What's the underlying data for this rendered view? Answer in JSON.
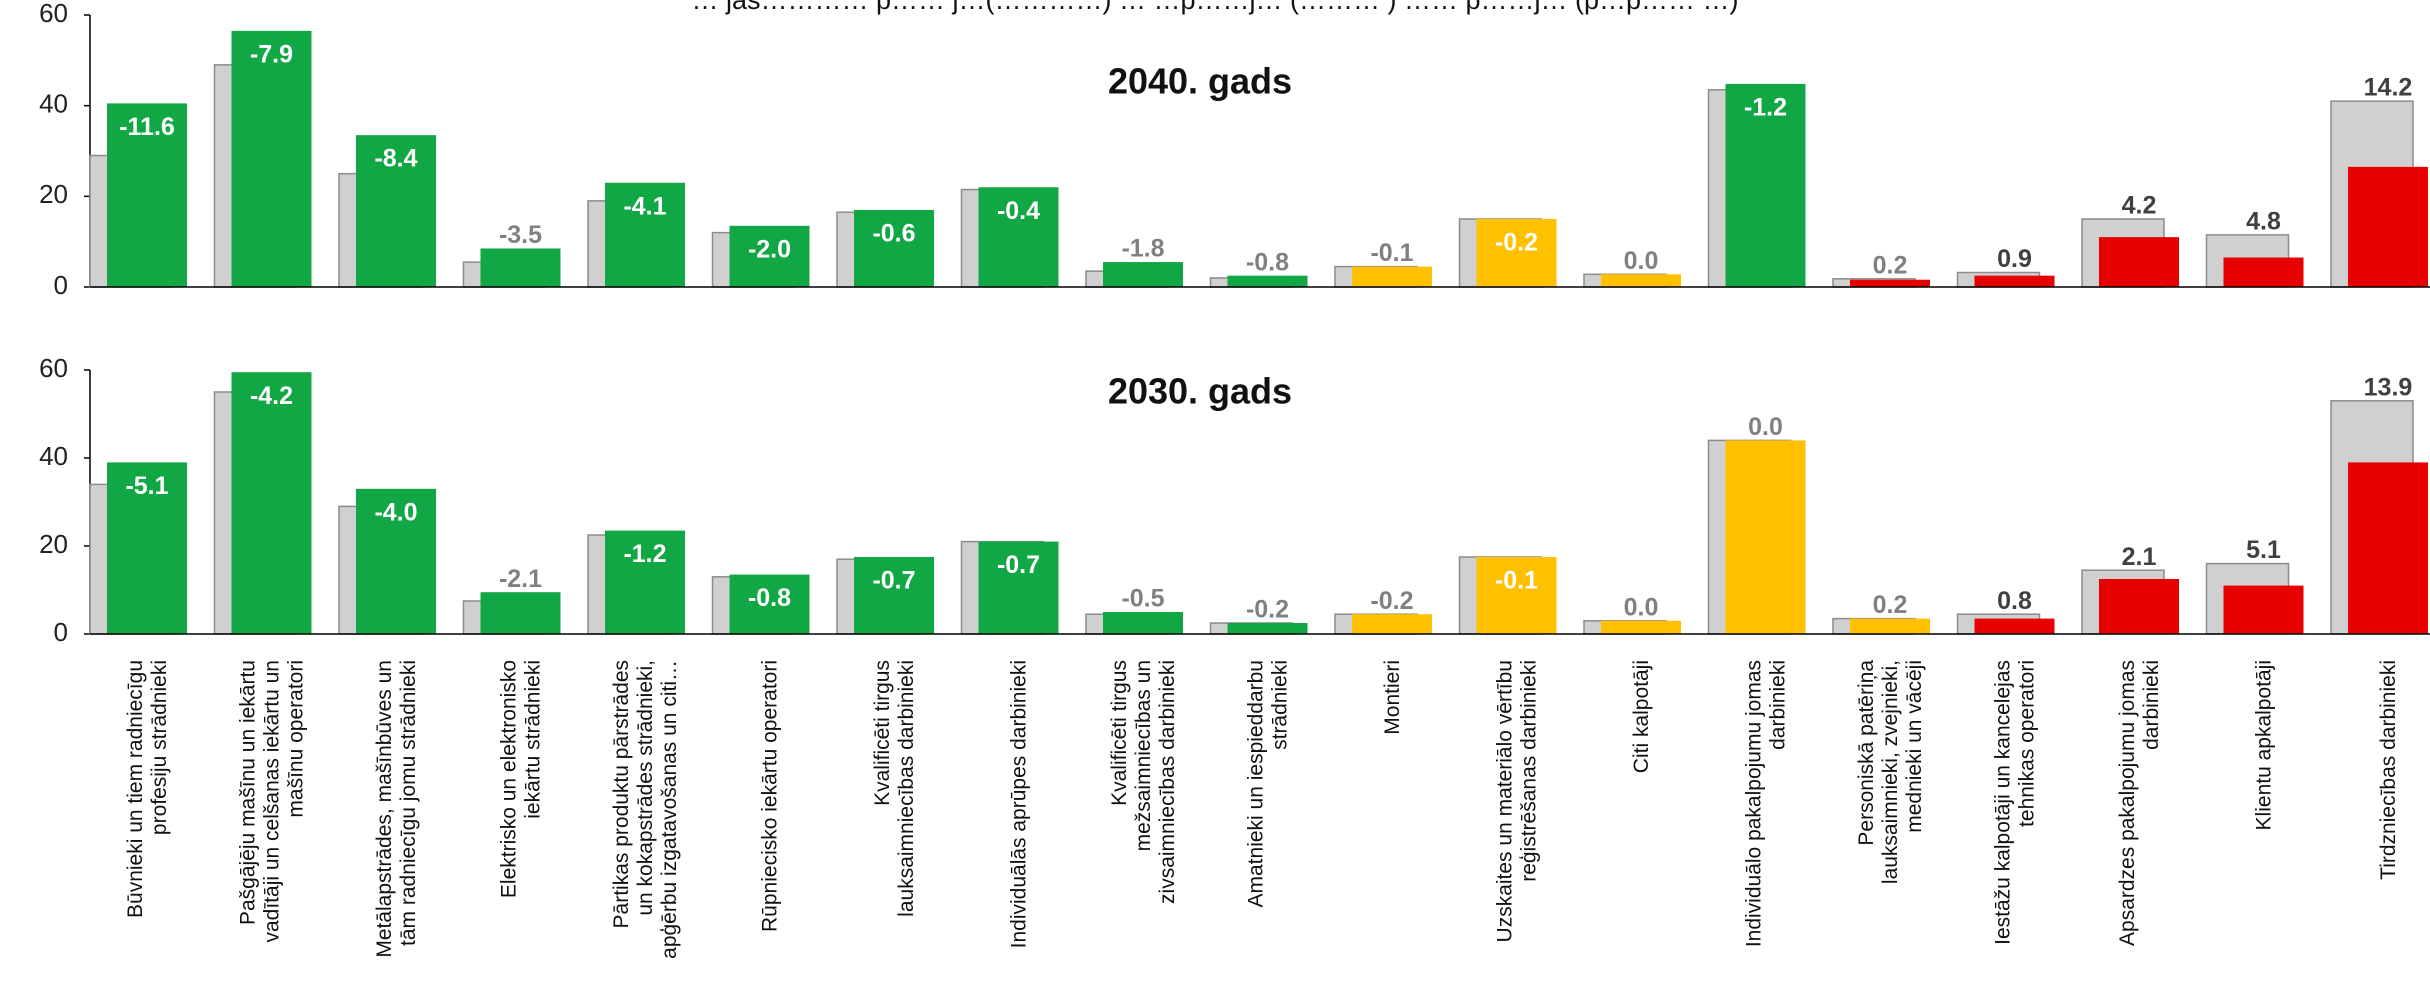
{
  "chart_data": {
    "type": "bar",
    "title": "… jas………… p…… j…(…………) … …p……j… (……… ) …… p……j… (p…p…… …)",
    "categories": [
      "Būvnieki un tiem radniecīgu profesiju strādnieki",
      "Pašgājēju mašīnu un iekārtu vadītāji un celšanas iekārtu un mašīnu operatori",
      "Metālapstrādes, mašīnbūves un tām radniecīgu jomu strādnieki",
      "Elektrisko un elektronisko iekārtu strādnieki",
      "Pārtikas produktu pārstrādes un kokapstrādes strādnieki, apģērbu izgatavošanas un citi…",
      "Rūpniecisko iekārtu operatori",
      "Kvalificēti tirgus lauksaimniecības darbinieki",
      "Individuālās aprūpes darbinieki",
      "Kvalificēti tirgus mežsaimniecības un zivsaimniecības darbinieki",
      "Amatnieki un iespieddarbu strādnieki",
      "Montieri",
      "Uzskaites un materiālo vērtību reģistrēšanas darbinieki",
      "Citi kalpotāji",
      "Individuālo pakalpojumu jomas darbinieki",
      "Personiskā patēriņa lauksaimnieki, zvejnieki, mednieki un vācēji",
      "Iestāžu kalpotāji un kancelejas tehnikas operatori",
      "Apsardzes pakalpojumu jomas darbinieki",
      "Klientu apkalpotāji",
      "Tirdzniecības darbinieki"
    ],
    "category_label_lines": [
      [
        "Būvnieki un tiem radniecīgu",
        "profesiju strādnieki"
      ],
      [
        "Pašgājēju mašīnu un iekārtu",
        "vadītāji un celšanas iekārtu un",
        "mašīnu operatori"
      ],
      [
        "Metālapstrādes, mašīnbūves un",
        "tām radniecīgu jomu strādnieki"
      ],
      [
        "Elektrisko un elektronisko",
        "iekārtu strādnieki"
      ],
      [
        "Pārtikas produktu pārstrādes",
        "un kokapstrādes strādnieki,",
        "apģērbu izgatavošanas un citi…"
      ],
      [
        "Rūpniecisko iekārtu operatori"
      ],
      [
        "Kvalificēti tirgus",
        "lauksaimniecības darbinieki"
      ],
      [
        "Individuālās aprūpes darbinieki"
      ],
      [
        "Kvalificēti tirgus",
        "mežsaimniecības un",
        "zivsaimniecības darbinieki"
      ],
      [
        "Amatnieki un iespieddarbu",
        "strādnieki"
      ],
      [
        "Montieri"
      ],
      [
        "Uzskaites un materiālo vērtību",
        "reģistrēšanas darbinieki"
      ],
      [
        "Citi kalpotāji"
      ],
      [
        "Individuālo pakalpojumu jomas",
        "darbinieki"
      ],
      [
        "Personiskā patēriņa",
        "lauksaimnieki, zvejnieki,",
        "mednieki un vācēji"
      ],
      [
        "Iestāžu kalpotāji un kancelejas",
        "tehnikas operatori"
      ],
      [
        "Apsardzes pakalpojumu jomas",
        "darbinieki"
      ],
      [
        "Klientu apkalpotāji"
      ],
      [
        "Tirdzniecības darbinieki"
      ]
    ],
    "ylim": [
      0,
      60
    ],
    "yticks": [
      0,
      20,
      40,
      60
    ],
    "colors": {
      "green": "#12A745",
      "yellow": "#FFC000",
      "red": "#E60000",
      "grey": "#D0D0D0",
      "grey_edge": "#8C8C8C",
      "label_white": "#FFFFFF",
      "label_grey": "#808080",
      "label_dark": "#404040"
    },
    "panels": [
      {
        "title": "2040. gads",
        "series": [
          {
            "values": [
              29,
              49,
              25,
              5.5,
              19,
              12,
              16.5,
              21.5,
              3.5,
              2,
              4.5,
              15,
              2.8,
              43.5,
              1.8,
              3.2,
              15,
              11.5,
              41
            ]
          },
          {
            "values": [
              40.5,
              56.5,
              33.5,
              8.5,
              23,
              13.5,
              17,
              22,
              5.5,
              2.5,
              4.5,
              15,
              2.8,
              44.8,
              1.6,
              2.5,
              11,
              6.5,
              26.5
            ]
          }
        ],
        "labels": [
          "-11.6",
          "-7.9",
          "-8.4",
          "-3.5",
          "-4.1",
          "-2.0",
          "-0.6",
          "-0.4",
          "-1.8",
          "-0.8",
          "-0.1",
          "-0.2",
          "0.0",
          "-1.2",
          "0.2",
          "0.9",
          "4.2",
          "4.8",
          "14.2"
        ],
        "color_keys": [
          "green",
          "green",
          "green",
          "green",
          "green",
          "green",
          "green",
          "green",
          "green",
          "green",
          "yellow",
          "yellow",
          "yellow",
          "green",
          "red",
          "red",
          "red",
          "red",
          "red"
        ]
      },
      {
        "title": "2030. gads",
        "series": [
          {
            "values": [
              34,
              55,
              29,
              7.5,
              22.5,
              13,
              17,
              21,
              4.5,
              2.5,
              4.5,
              17.5,
              3,
              44,
              3.5,
              4.5,
              14.5,
              16,
              53
            ]
          },
          {
            "values": [
              39,
              59.5,
              33,
              9.5,
              23.5,
              13.5,
              17.5,
              21,
              5,
              2.5,
              4.5,
              17.5,
              3,
              44,
              3.5,
              3.5,
              12.5,
              11,
              39
            ]
          }
        ],
        "labels": [
          "-5.1",
          "-4.2",
          "-4.0",
          "-2.1",
          "-1.2",
          "-0.8",
          "-0.7",
          "-0.7",
          "-0.5",
          "-0.2",
          "-0.2",
          "-0.1",
          "0.0",
          "0.0",
          "0.2",
          "0.8",
          "2.1",
          "5.1",
          "13.9"
        ],
        "color_keys": [
          "green",
          "green",
          "green",
          "green",
          "green",
          "green",
          "green",
          "green",
          "green",
          "green",
          "yellow",
          "yellow",
          "yellow",
          "yellow",
          "yellow",
          "red",
          "red",
          "red",
          "red"
        ]
      }
    ]
  }
}
